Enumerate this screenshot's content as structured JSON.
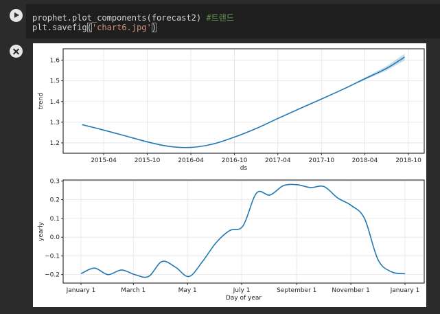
{
  "code": {
    "line1_code": "prophet.plot_components(forecast2) ",
    "line1_comment": "#트렌드",
    "line2_prefix": "plt.savefig",
    "line2_open": "(",
    "line2_string": "'chart6.jpg'",
    "line2_close": ")"
  },
  "chart_data": [
    {
      "type": "line",
      "xlabel": "ds",
      "ylabel": "trend",
      "x_ticks": [
        "2015-04",
        "2015-10",
        "2016-04",
        "2016-10",
        "2017-04",
        "2017-10",
        "2018-04",
        "2018-10"
      ],
      "y_ticks": [
        "1.2",
        "1.3",
        "1.4",
        "1.5",
        "1.6"
      ],
      "ylim": [
        1.15,
        1.655
      ],
      "x": [
        "2015-01-01",
        "2015-04-01",
        "2015-07-01",
        "2015-10-01",
        "2016-01-01",
        "2016-04-01",
        "2016-07-01",
        "2016-10-01",
        "2017-01-01",
        "2017-04-01",
        "2017-07-01",
        "2017-10-01",
        "2018-01-01",
        "2018-04-01",
        "2018-07-01",
        "2018-09-15"
      ],
      "values": [
        1.288,
        1.262,
        1.234,
        1.205,
        1.183,
        1.178,
        1.194,
        1.228,
        1.27,
        1.318,
        1.365,
        1.412,
        1.46,
        1.51,
        1.56,
        1.615
      ],
      "uncertainty_band": true,
      "grid": true,
      "color": "#1f77b4"
    },
    {
      "type": "line",
      "xlabel": "Day of year",
      "ylabel": "yearly",
      "x_ticks": [
        "January 1",
        "March 1",
        "May 1",
        "July 1",
        "September 1",
        "November 1",
        "January 1"
      ],
      "y_ticks": [
        "−0.2",
        "−0.1",
        "0.0",
        "0.1",
        "0.2",
        "0.3"
      ],
      "ylim": [
        -0.245,
        0.305
      ],
      "x": [
        "Jan 1",
        "Jan 16",
        "Feb 1",
        "Feb 16",
        "Mar 1",
        "Mar 16",
        "Apr 1",
        "Apr 16",
        "May 1",
        "May 16",
        "Jun 1",
        "Jun 16",
        "Jul 1",
        "Jul 16",
        "Aug 1",
        "Aug 16",
        "Sep 1",
        "Sep 16",
        "Oct 1",
        "Oct 16",
        "Nov 1",
        "Nov 16",
        "Dec 1",
        "Dec 16",
        "Dec 31"
      ],
      "values": [
        -0.195,
        -0.165,
        -0.2,
        -0.175,
        -0.2,
        -0.21,
        -0.13,
        -0.16,
        -0.21,
        -0.13,
        -0.03,
        0.035,
        0.06,
        0.235,
        0.225,
        0.275,
        0.28,
        0.265,
        0.27,
        0.21,
        0.17,
        0.1,
        -0.12,
        -0.185,
        -0.195
      ],
      "grid": true,
      "color": "#1f77b4"
    }
  ]
}
